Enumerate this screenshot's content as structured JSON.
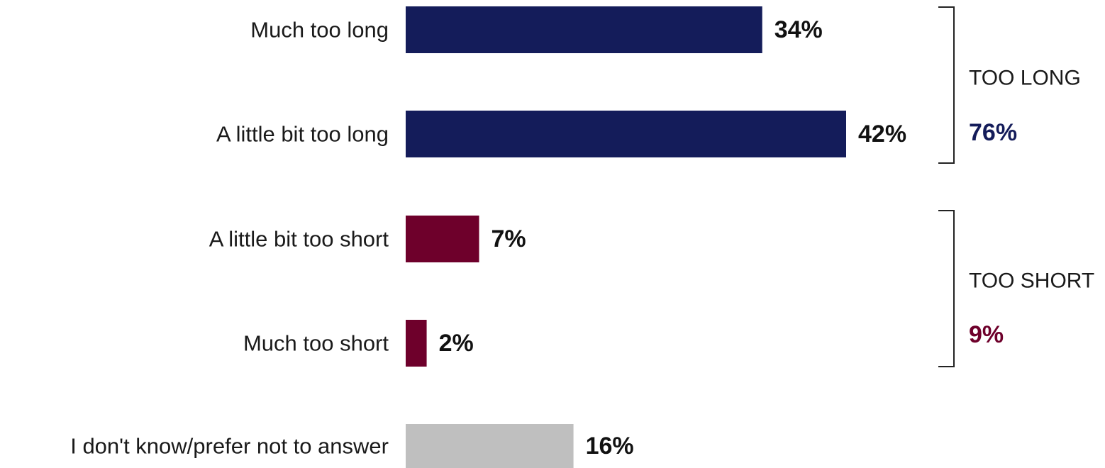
{
  "colors": {
    "too_long": "#141c5a",
    "too_short": "#6e002b",
    "dont_know": "#bfbfbf"
  },
  "chart_data": {
    "type": "bar",
    "orientation": "horizontal",
    "title": "",
    "xlabel": "",
    "ylabel": "",
    "xlim": [
      0,
      42
    ],
    "grid": false,
    "categories": [
      "Much too long",
      "A little bit too long",
      "A little bit too short",
      "Much too short",
      "I don't know/prefer not to answer"
    ],
    "values": [
      34,
      42,
      7,
      2,
      16
    ],
    "value_labels": [
      "34%",
      "42%",
      "7%",
      "2%",
      "16%"
    ],
    "bar_groups": [
      "too_long",
      "too_long",
      "too_short",
      "too_short",
      "dont_know"
    ],
    "groups": [
      {
        "key": "too_long",
        "label": "TOO LONG",
        "total": "76%",
        "members": [
          0,
          1
        ]
      },
      {
        "key": "too_short",
        "label": "TOO SHORT",
        "total": "9%",
        "members": [
          2,
          3
        ]
      }
    ]
  }
}
